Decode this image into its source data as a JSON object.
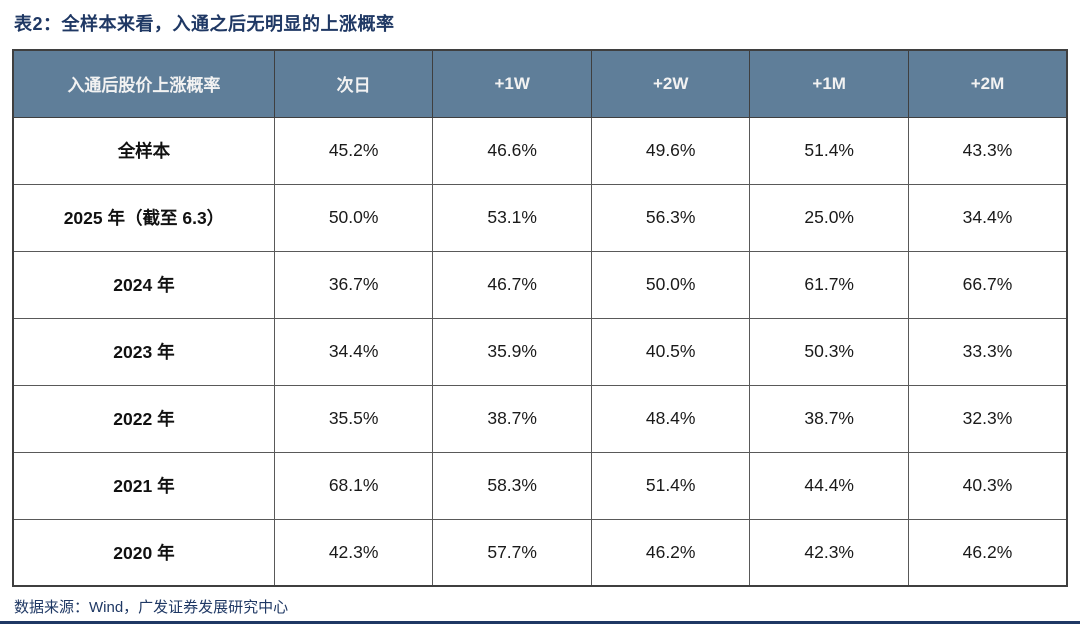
{
  "chart_data": {
    "type": "table",
    "title": "表2：全样本来看，入通之后无明显的上涨概率",
    "columns": [
      "入通后股价上涨概率",
      "次日",
      "+1W",
      "+2W",
      "+1M",
      "+2M"
    ],
    "rows": [
      {
        "label": "全样本",
        "values": [
          "45.2%",
          "46.6%",
          "49.6%",
          "51.4%",
          "43.3%"
        ]
      },
      {
        "label": "2025 年（截至 6.3）",
        "values": [
          "50.0%",
          "53.1%",
          "56.3%",
          "25.0%",
          "34.4%"
        ]
      },
      {
        "label": "2024 年",
        "values": [
          "36.7%",
          "46.7%",
          "50.0%",
          "61.7%",
          "66.7%"
        ]
      },
      {
        "label": "2023 年",
        "values": [
          "34.4%",
          "35.9%",
          "40.5%",
          "50.3%",
          "33.3%"
        ]
      },
      {
        "label": "2022 年",
        "values": [
          "35.5%",
          "38.7%",
          "48.4%",
          "38.7%",
          "32.3%"
        ]
      },
      {
        "label": "2021 年",
        "values": [
          "68.1%",
          "58.3%",
          "51.4%",
          "44.4%",
          "40.3%"
        ]
      },
      {
        "label": "2020 年",
        "values": [
          "42.3%",
          "57.7%",
          "46.2%",
          "42.3%",
          "46.2%"
        ]
      }
    ],
    "source": "数据来源：Wind，广发证券发展研究中心"
  },
  "colors": {
    "accent_navy": "#1F3864",
    "header_bg": "#5F7E99",
    "header_text": "#F2F2F2",
    "grid_border": "#595959"
  }
}
